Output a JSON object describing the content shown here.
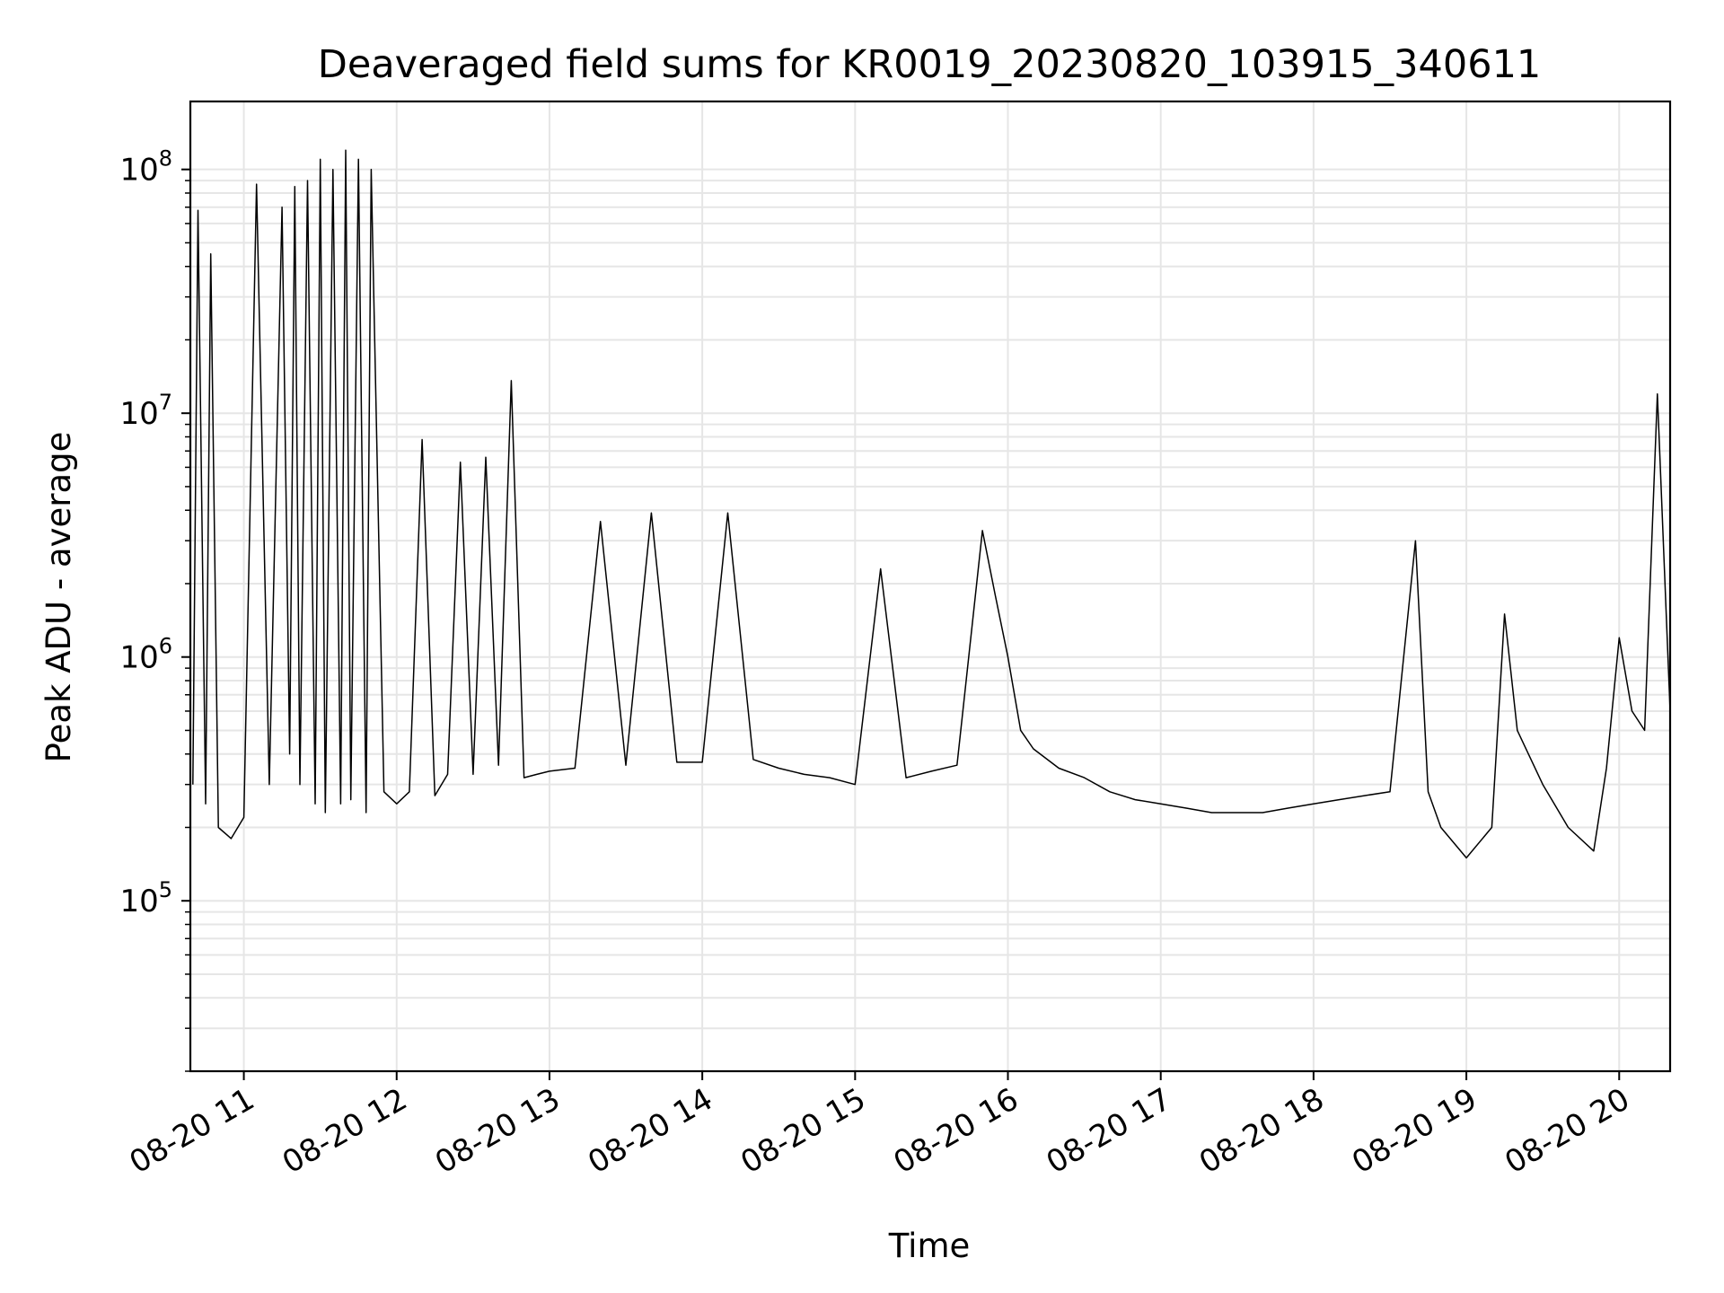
{
  "chart_data": {
    "type": "line",
    "title": "Deaveraged field sums for KR0019_20230820_103915_340611",
    "xlabel": "Time",
    "ylabel": "Peak ADU - average",
    "yscale": "log",
    "ylim": [
      20000,
      190000000
    ],
    "xlim": [
      "2023-08-20 10:39",
      "2023-08-20 20:20"
    ],
    "grid": true,
    "line_color": "#000000",
    "grid_color": "#e6e6e6",
    "x_ticks": [
      "08-20 11",
      "08-20 12",
      "08-20 13",
      "08-20 14",
      "08-20 15",
      "08-20 16",
      "08-20 17",
      "08-20 18",
      "08-20 19",
      "08-20 20"
    ],
    "y_ticks": [
      {
        "base": "10",
        "exp": "5",
        "value": 100000
      },
      {
        "base": "10",
        "exp": "6",
        "value": 1000000
      },
      {
        "base": "10",
        "exp": "7",
        "value": 10000000
      },
      {
        "base": "10",
        "exp": "8",
        "value": 100000000
      }
    ],
    "series": [
      {
        "x": [
          "2023-08-20 10:40",
          "2023-08-20 10:42",
          "2023-08-20 10:45",
          "2023-08-20 10:47",
          "2023-08-20 10:50",
          "2023-08-20 10:55",
          "2023-08-20 11:00",
          "2023-08-20 11:05",
          "2023-08-20 11:10",
          "2023-08-20 11:15",
          "2023-08-20 11:18",
          "2023-08-20 11:20",
          "2023-08-20 11:22",
          "2023-08-20 11:25",
          "2023-08-20 11:28",
          "2023-08-20 11:30",
          "2023-08-20 11:32",
          "2023-08-20 11:35",
          "2023-08-20 11:38",
          "2023-08-20 11:40",
          "2023-08-20 11:42",
          "2023-08-20 11:45",
          "2023-08-20 11:48",
          "2023-08-20 11:50",
          "2023-08-20 11:55",
          "2023-08-20 12:00",
          "2023-08-20 12:05",
          "2023-08-20 12:10",
          "2023-08-20 12:15",
          "2023-08-20 12:20",
          "2023-08-20 12:25",
          "2023-08-20 12:30",
          "2023-08-20 12:35",
          "2023-08-20 12:40",
          "2023-08-20 12:45",
          "2023-08-20 12:50",
          "2023-08-20 12:55",
          "2023-08-20 13:00",
          "2023-08-20 13:10",
          "2023-08-20 13:20",
          "2023-08-20 13:30",
          "2023-08-20 13:40",
          "2023-08-20 13:50",
          "2023-08-20 14:00",
          "2023-08-20 14:10",
          "2023-08-20 14:20",
          "2023-08-20 14:30",
          "2023-08-20 14:40",
          "2023-08-20 14:50",
          "2023-08-20 15:00",
          "2023-08-20 15:10",
          "2023-08-20 15:20",
          "2023-08-20 15:30",
          "2023-08-20 15:40",
          "2023-08-20 15:50",
          "2023-08-20 15:55",
          "2023-08-20 16:00",
          "2023-08-20 16:05",
          "2023-08-20 16:10",
          "2023-08-20 16:20",
          "2023-08-20 16:30",
          "2023-08-20 16:40",
          "2023-08-20 16:50",
          "2023-08-20 17:00",
          "2023-08-20 17:10",
          "2023-08-20 17:20",
          "2023-08-20 17:30",
          "2023-08-20 17:40",
          "2023-08-20 17:50",
          "2023-08-20 18:00",
          "2023-08-20 18:10",
          "2023-08-20 18:20",
          "2023-08-20 18:30",
          "2023-08-20 18:40",
          "2023-08-20 18:45",
          "2023-08-20 18:50",
          "2023-08-20 19:00",
          "2023-08-20 19:10",
          "2023-08-20 19:15",
          "2023-08-20 19:20",
          "2023-08-20 19:30",
          "2023-08-20 19:40",
          "2023-08-20 19:50",
          "2023-08-20 19:55",
          "2023-08-20 20:00",
          "2023-08-20 20:05",
          "2023-08-20 20:10",
          "2023-08-20 20:15",
          "2023-08-20 20:20"
        ],
        "y": [
          300000,
          68000000,
          250000,
          45000000,
          200000,
          180000,
          220000,
          87000000,
          300000,
          70000000,
          400000,
          85000000,
          300000,
          90000000,
          250000,
          110000000,
          230000,
          100000000,
          250000,
          120000000,
          260000,
          110000000,
          230000,
          100000000,
          280000,
          250000,
          280000,
          7800000,
          270000,
          330000,
          6300000,
          330000,
          6600000,
          360000,
          13600000,
          320000,
          330000,
          340000,
          350000,
          3600000,
          360000,
          3900000,
          370000,
          370000,
          3900000,
          380000,
          350000,
          330000,
          320000,
          300000,
          2300000,
          320000,
          340000,
          360000,
          3300000,
          1800000,
          1000000,
          500000,
          420000,
          350000,
          320000,
          280000,
          260000,
          250000,
          240000,
          230000,
          230000,
          230000,
          240000,
          250000,
          260000,
          270000,
          280000,
          3000000,
          280000,
          200000,
          150000,
          200000,
          1500000,
          500000,
          300000,
          200000,
          160000,
          350000,
          1200000,
          600000,
          500000,
          12000000,
          600000
        ]
      }
    ]
  }
}
